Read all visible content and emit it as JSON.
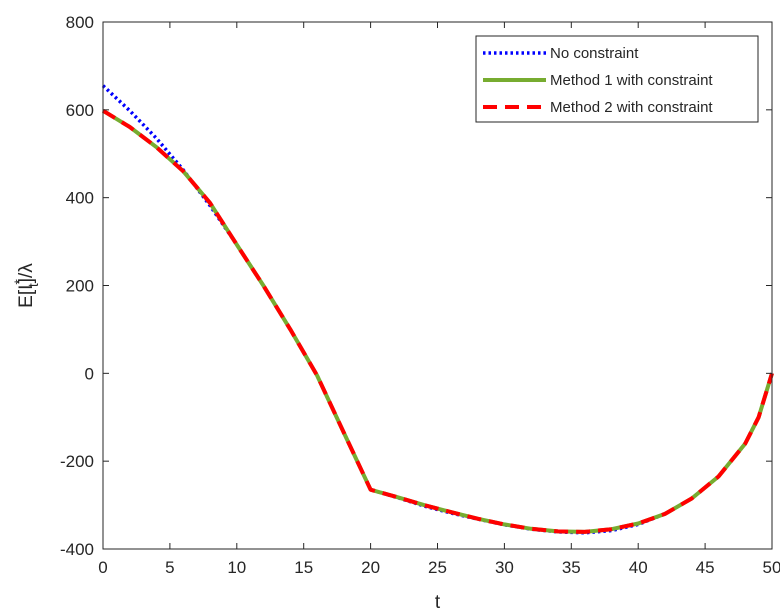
{
  "chart_data": {
    "type": "line",
    "title": "",
    "xlabel": "t",
    "ylabel": "E[I*t]/λ",
    "ylabel_parts": {
      "base": "E[I",
      "sup": "*",
      "sub": "t",
      "tail": "]/λ"
    },
    "xlim": [
      0,
      50
    ],
    "ylim": [
      -400,
      800
    ],
    "xticks": [
      0,
      5,
      10,
      15,
      20,
      25,
      30,
      35,
      40,
      45,
      50
    ],
    "yticks": [
      -400,
      -200,
      0,
      200,
      400,
      600,
      800
    ],
    "grid": false,
    "legend_position": "top-right",
    "series": [
      {
        "name": "No constraint",
        "color": "#0000FF",
        "style": "dotted",
        "x": [
          0,
          2,
          4,
          6,
          8,
          10,
          12,
          14,
          16,
          18,
          20,
          22,
          24,
          26,
          28,
          30,
          32,
          34,
          36,
          38,
          40,
          42,
          44,
          46,
          48,
          49,
          50
        ],
        "y": [
          655,
          598,
          535,
          463,
          382,
          293,
          199,
          100,
          -5,
          -135,
          -265,
          -283,
          -302,
          -318,
          -332,
          -345,
          -355,
          -361,
          -363,
          -358,
          -344,
          -320,
          -285,
          -235,
          -160,
          -100,
          0
        ]
      },
      {
        "name": "Method 1 with constraint",
        "color": "#77AC30",
        "style": "solid",
        "x": [
          0,
          2,
          4,
          6,
          8,
          10,
          12,
          14,
          16,
          18,
          20,
          22,
          24,
          26,
          28,
          30,
          32,
          34,
          36,
          38,
          40,
          42,
          44,
          46,
          48,
          49,
          50
        ],
        "y": [
          598,
          561,
          515,
          460,
          388,
          293,
          199,
          100,
          -5,
          -135,
          -265,
          -282,
          -300,
          -316,
          -331,
          -344,
          -354,
          -360,
          -361,
          -355,
          -342,
          -320,
          -285,
          -235,
          -160,
          -100,
          0
        ]
      },
      {
        "name": "Method 2 with constraint",
        "color": "#FF0000",
        "style": "dashed",
        "x": [
          0,
          2,
          4,
          6,
          8,
          10,
          12,
          14,
          16,
          18,
          20,
          22,
          24,
          26,
          28,
          30,
          32,
          34,
          36,
          38,
          40,
          42,
          44,
          46,
          48,
          49,
          50
        ],
        "y": [
          598,
          561,
          515,
          460,
          388,
          293,
          199,
          100,
          -5,
          -135,
          -265,
          -282,
          -300,
          -316,
          -331,
          -344,
          -354,
          -360,
          -361,
          -355,
          -342,
          -320,
          -285,
          -235,
          -160,
          -100,
          0
        ]
      }
    ]
  }
}
